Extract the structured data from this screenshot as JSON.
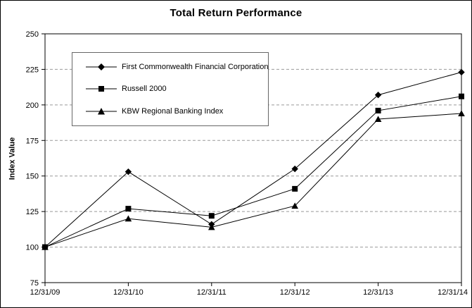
{
  "chart_data": {
    "type": "line",
    "title": "Total Return Performance",
    "xlabel": "",
    "ylabel": "Index Value",
    "categories": [
      "12/31/09",
      "12/31/10",
      "12/31/11",
      "12/31/12",
      "12/31/13",
      "12/31/14"
    ],
    "series": [
      {
        "name": "First Commonwealth Financial Corporation",
        "marker": "diamond",
        "color": "#000000",
        "values": [
          100,
          153,
          116,
          155,
          207,
          223
        ]
      },
      {
        "name": "Russell 2000",
        "marker": "square",
        "color": "#000000",
        "values": [
          100,
          127,
          122,
          141,
          196,
          206
        ]
      },
      {
        "name": "KBW Regional Banking Index",
        "marker": "triangle",
        "color": "#000000",
        "values": [
          100,
          120,
          114,
          129,
          190,
          194
        ]
      }
    ],
    "ylim": [
      75,
      250
    ],
    "y_ticks": [
      75,
      100,
      125,
      150,
      175,
      200,
      225,
      250
    ],
    "grid": "horizontal-dashed",
    "grid_color": "#999999",
    "axis_color": "#000000",
    "background": "#ffffff",
    "legend_position": "upper-left-inside"
  }
}
